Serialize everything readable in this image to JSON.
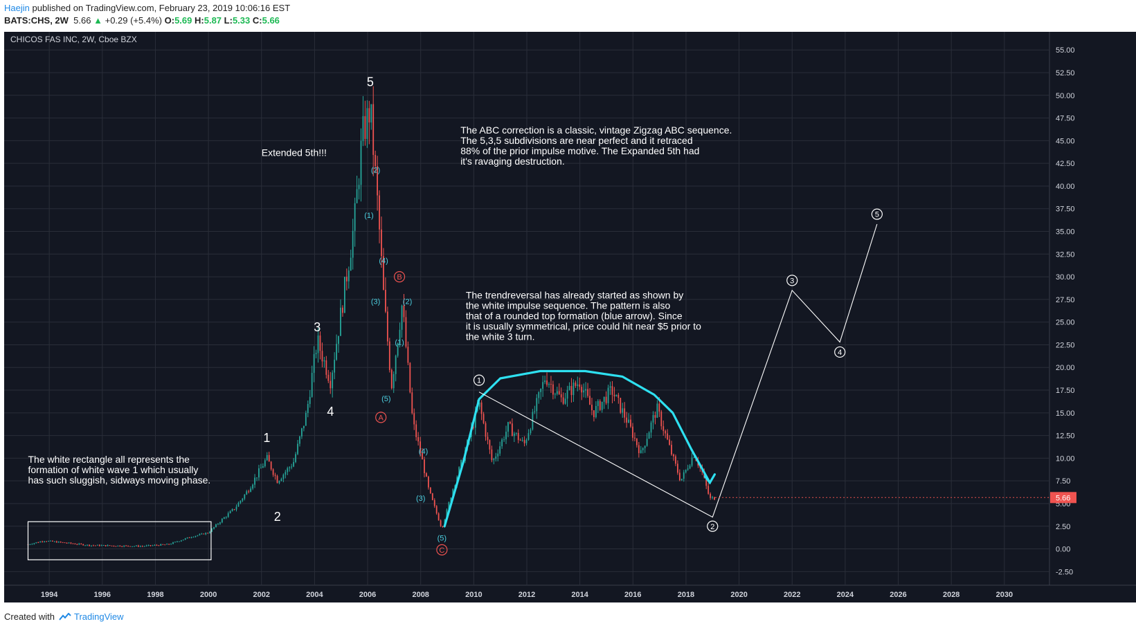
{
  "header": {
    "author": "Haejin",
    "published_text": "published on TradingView.com, February 23, 2019 10:06:16 EST",
    "symbol": "BATS:CHS, 2W",
    "last": "5.66",
    "change": "+0.29 (+5.4%)",
    "o_label": "O:",
    "o_value": "5.69",
    "h_label": "H:",
    "h_value": "5.87",
    "l_label": "L:",
    "l_value": "5.33",
    "c_label": "C:",
    "c_value": "5.66"
  },
  "footer": {
    "created_with": "Created with",
    "brand": "TradingView"
  },
  "colors": {
    "background": "#131722",
    "grid": "#2a2e39",
    "up": "#26a69a",
    "down": "#ef5350",
    "annotation_white": "#ffffff",
    "rounded_top": "#2ee0f0",
    "price_tag": "#ef5350",
    "wave_red": "#ef5350",
    "wave_cyan": "#4dd0e1"
  },
  "chart_data": {
    "type": "candlestick",
    "title": "CHICOS FAS INC, 2W, Cboe BZX",
    "current_price_label": "5.66",
    "ylim": [
      -4,
      57
    ],
    "y_ticks": [
      "55.00",
      "52.50",
      "50.00",
      "47.50",
      "45.00",
      "42.50",
      "40.00",
      "37.50",
      "35.00",
      "32.50",
      "30.00",
      "27.50",
      "25.00",
      "22.50",
      "20.00",
      "17.50",
      "15.00",
      "12.50",
      "10.00",
      "7.50",
      "5.00",
      "2.50",
      "0.00",
      "-2.50"
    ],
    "xlim": [
      1992.3,
      2031.7
    ],
    "x_ticks": [
      "1994",
      "1996",
      "1998",
      "2000",
      "2002",
      "2004",
      "2006",
      "2008",
      "2010",
      "2012",
      "2014",
      "2016",
      "2018",
      "2020",
      "2022",
      "2024",
      "2026",
      "2028",
      "2030"
    ],
    "price_path": [
      [
        1993.2,
        0.5
      ],
      [
        1993.8,
        0.9
      ],
      [
        1994.5,
        0.7
      ],
      [
        1995.5,
        0.4
      ],
      [
        1996.5,
        0.35
      ],
      [
        1997.5,
        0.3
      ],
      [
        1998.5,
        0.5
      ],
      [
        1999.3,
        1.3
      ],
      [
        2000.0,
        1.8
      ],
      [
        2000.5,
        3.2
      ],
      [
        2001.0,
        4.5
      ],
      [
        2001.5,
        6.5
      ],
      [
        2002.2,
        10.0
      ],
      [
        2002.6,
        7.5
      ],
      [
        2003.2,
        9.5
      ],
      [
        2003.7,
        15.0
      ],
      [
        2004.1,
        23.0
      ],
      [
        2004.6,
        18.5
      ],
      [
        2005.1,
        28.0
      ],
      [
        2005.5,
        36.0
      ],
      [
        2005.8,
        45.5
      ],
      [
        2006.1,
        48.5
      ],
      [
        2006.4,
        37.0
      ],
      [
        2006.6,
        28.0
      ],
      [
        2006.9,
        18.0
      ],
      [
        2007.3,
        27.0
      ],
      [
        2007.7,
        14.0
      ],
      [
        2008.0,
        10.5
      ],
      [
        2008.3,
        6.5
      ],
      [
        2008.8,
        2.2
      ],
      [
        2009.2,
        6.5
      ],
      [
        2009.7,
        11.0
      ],
      [
        2010.2,
        16.0
      ],
      [
        2010.7,
        9.5
      ],
      [
        2011.3,
        13.5
      ],
      [
        2011.9,
        11.5
      ],
      [
        2012.7,
        19.0
      ],
      [
        2013.3,
        16.5
      ],
      [
        2014.0,
        18.5
      ],
      [
        2014.5,
        15.0
      ],
      [
        2015.2,
        17.5
      ],
      [
        2015.8,
        14.0
      ],
      [
        2016.3,
        10.5
      ],
      [
        2016.9,
        15.5
      ],
      [
        2017.4,
        11.0
      ],
      [
        2017.8,
        7.5
      ],
      [
        2018.3,
        10.5
      ],
      [
        2018.6,
        8.5
      ],
      [
        2018.9,
        5.5
      ],
      [
        2019.1,
        5.66
      ]
    ],
    "labels": {
      "chart_title": "CHICOS FAS INC, 2W, Cboe BZX",
      "extended_5th": "Extended 5th!!!",
      "abc_text": [
        "The ABC correction is a classic, vintage Zigzag ABC sequence.",
        "The 5,3,5 subdivisions are near perfect and it retraced",
        "88% of the prior impulse motive. The Expanded 5th had",
        "it's ravaging destruction."
      ],
      "trend_text": [
        "The trendreversal has already started as shown by",
        "the white impulse sequence. The pattern is also",
        "that of a rounded top formation (blue arrow). Since",
        "it is usually symmetrical, price could hit near $5 prior to",
        "the white 3 turn."
      ],
      "rect_text": [
        "The white rectangle all represents the",
        "formation of white wave 1 which usually",
        "has such sluggish, sidways moving phase."
      ],
      "wave1": "1",
      "wave2": "2",
      "wave3": "3",
      "wave4": "4",
      "wave5": "5",
      "waveA": "A",
      "waveB": "B",
      "waveC": "C",
      "sub_2_top": "(2)",
      "sub_1_top": "(1)",
      "sub_4_top": "(4)",
      "sub_3_top": "(3)",
      "sub_5_mid": "(5)",
      "sub_2_b": "(2)",
      "sub_1_b": "(1)",
      "sub_4_low": "(4)",
      "sub_3_low": "(3)",
      "sub_5_low": "(5)",
      "c1": "1",
      "c2": "2",
      "c3": "3",
      "c4": "4",
      "c5": "5"
    }
  }
}
